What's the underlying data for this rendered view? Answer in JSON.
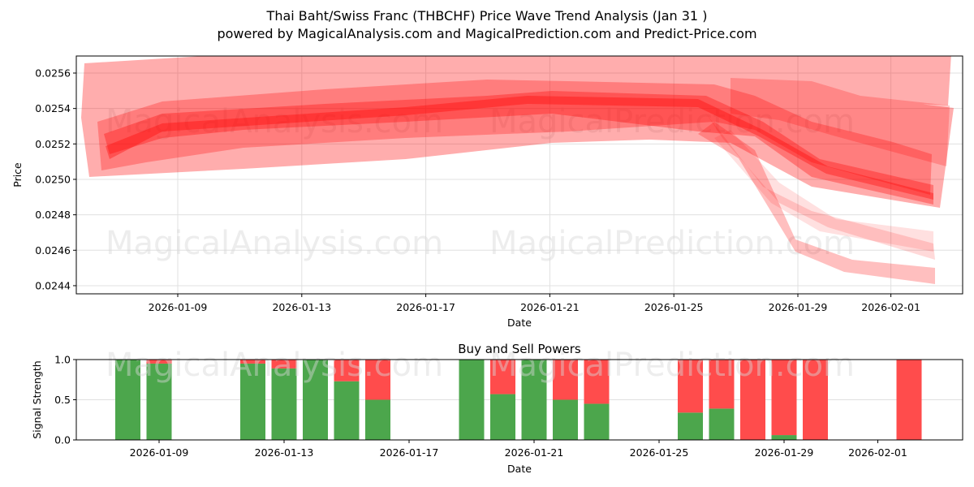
{
  "header": {
    "title": "Thai Baht/Swiss Franc (THBCHF) Price Wave Trend Analysis (Jan 31 )",
    "subtitle": "powered by MagicalAnalysis.com and MagicalPrediction.com and Predict-Price.com"
  },
  "watermarks": [
    "MagicalAnalysis.com",
    "MagicalPrediction.com"
  ],
  "colors": {
    "wave": "#ff0000",
    "buy": "#4ca64c",
    "sell": "#ff4c4c"
  },
  "chart_data": [
    {
      "type": "area",
      "title": "",
      "xlabel": "Date",
      "ylabel": "Price",
      "ylim": [
        0.02435,
        0.0257
      ],
      "yticks": [
        "0.0244",
        "0.0246",
        "0.0248",
        "0.0250",
        "0.0252",
        "0.0254",
        "0.0256"
      ],
      "xticks": [
        "2026-01-09",
        "2026-01-13",
        "2026-01-17",
        "2026-01-21",
        "2026-01-25",
        "2026-01-29",
        "2026-02-01"
      ],
      "grid": true,
      "x": [
        "2026-01-07",
        "2026-01-09",
        "2026-01-13",
        "2026-01-17",
        "2026-01-21",
        "2026-01-25",
        "2026-01-27",
        "2026-01-29",
        "2026-01-31",
        "2026-02-02"
      ],
      "series": [
        {
          "name": "central wave",
          "values": [
            0.02516,
            0.02528,
            0.02532,
            0.0254,
            0.02548,
            0.02546,
            0.0254,
            0.02525,
            0.02505,
            0.02492
          ]
        },
        {
          "name": "upper envelope",
          "values": [
            0.02564,
            0.02568,
            0.02568,
            0.02568,
            0.02568,
            0.02568,
            0.02568,
            0.02568,
            0.02568,
            0.02568
          ]
        },
        {
          "name": "lower envelope",
          "values": [
            0.02502,
            0.02505,
            0.02507,
            0.02515,
            0.0252,
            0.02525,
            0.0252,
            0.02462,
            0.02445,
            0.0244
          ]
        }
      ]
    },
    {
      "type": "bar",
      "title": "Buy and Sell Powers",
      "xlabel": "Date",
      "ylabel": "Signal Strength",
      "ylim": [
        0,
        1
      ],
      "yticks": [
        "0.0",
        "0.5",
        "1.0"
      ],
      "xticks": [
        "2026-01-09",
        "2026-01-13",
        "2026-01-17",
        "2026-01-21",
        "2026-01-25",
        "2026-01-29",
        "2026-02-01"
      ],
      "stacked": true,
      "categories": [
        "2026-01-08",
        "2026-01-09",
        "2026-01-12",
        "2026-01-13",
        "2026-01-14",
        "2026-01-15",
        "2026-01-16",
        "2026-01-19",
        "2026-01-20",
        "2026-01-21",
        "2026-01-22",
        "2026-01-23",
        "2026-01-26",
        "2026-01-27",
        "2026-01-28",
        "2026-01-29",
        "2026-01-30",
        "2026-02-02"
      ],
      "series": [
        {
          "name": "Buy",
          "values": [
            1.0,
            0.95,
            0.95,
            0.89,
            1.0,
            0.73,
            0.5,
            1.0,
            0.57,
            1.0,
            0.5,
            0.45,
            0.34,
            0.39,
            0.0,
            0.06,
            0.0,
            0.0
          ]
        },
        {
          "name": "Sell",
          "values": [
            0.0,
            0.05,
            0.05,
            0.11,
            0.0,
            0.27,
            0.5,
            0.0,
            0.43,
            0.0,
            0.5,
            0.55,
            0.66,
            0.61,
            1.0,
            0.94,
            1.0,
            1.0
          ]
        }
      ]
    }
  ]
}
